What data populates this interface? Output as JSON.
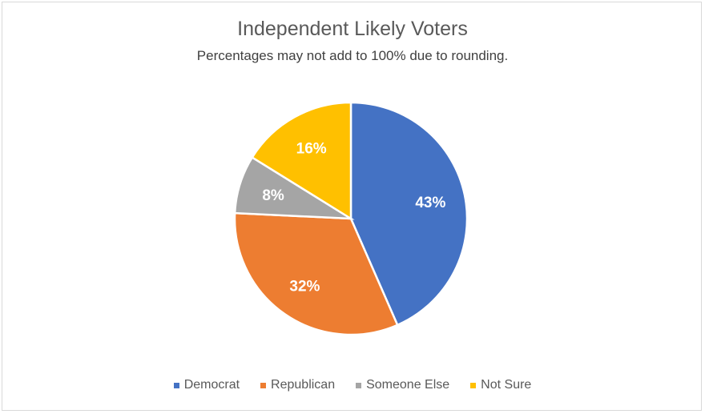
{
  "chart_data": {
    "type": "pie",
    "title": "Independent Likely Voters",
    "subtitle": "Percentages may not add to 100% due to rounding.",
    "start_angle": "top, clockwise",
    "legend_position": "bottom",
    "slices": [
      {
        "name": "Democrat",
        "value": 43,
        "label": "43%",
        "color": "#4472c4"
      },
      {
        "name": "Republican",
        "value": 32,
        "label": "32%",
        "color": "#ed7d31"
      },
      {
        "name": "Someone Else",
        "value": 8,
        "label": "8%",
        "color": "#a5a5a5"
      },
      {
        "name": "Not Sure",
        "value": 16,
        "label": "16%",
        "color": "#ffc000"
      }
    ]
  }
}
